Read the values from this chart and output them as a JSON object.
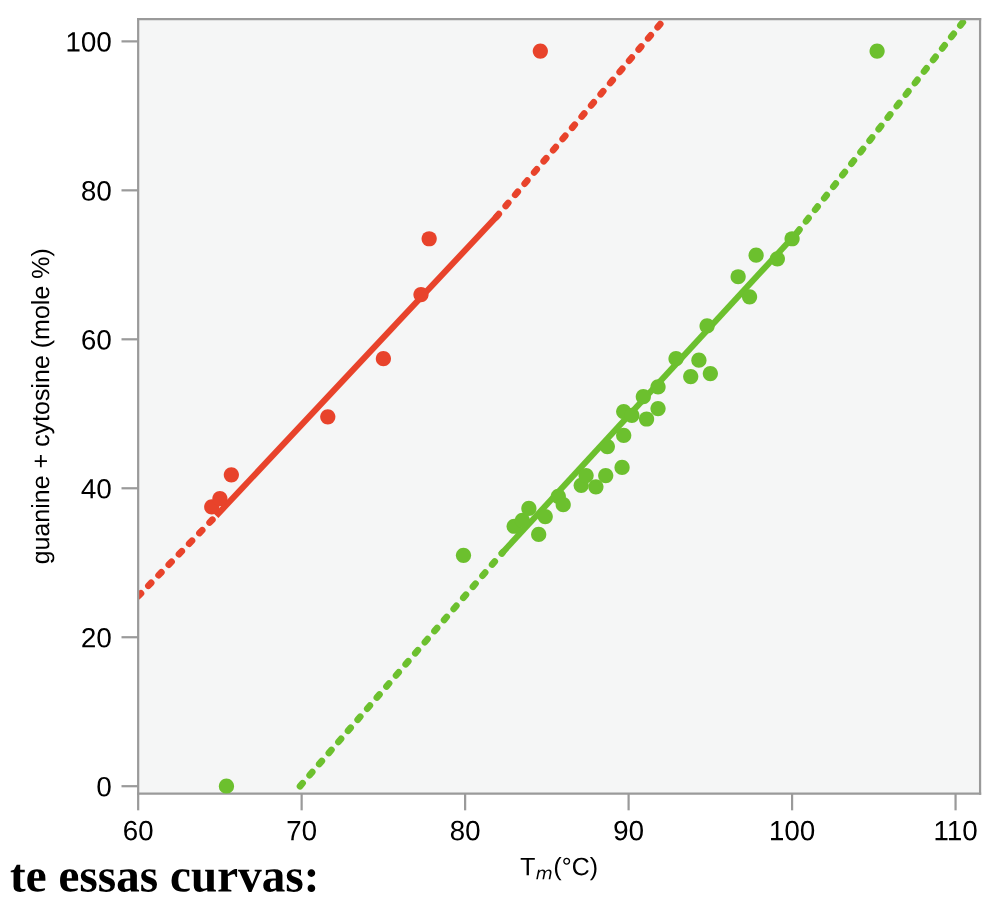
{
  "chart_data": {
    "type": "scatter",
    "xlabel": "T$_{m}$(°C)",
    "ylabel": "guanine + cytosine (mole %)",
    "xlim": [
      60,
      111.5
    ],
    "ylim": [
      -1,
      103
    ],
    "xticks": [
      60,
      70,
      80,
      90,
      100,
      110
    ],
    "yticks": [
      0,
      20,
      40,
      60,
      80,
      100
    ],
    "grid": false,
    "legend": false,
    "annotations": [
      "te essas curvas:"
    ],
    "series": [
      {
        "marker": "circle",
        "color": "#e8432b",
        "x": [
          64.5,
          65.0,
          65.7,
          71.6,
          75.0,
          77.3,
          77.8,
          84.6
        ],
        "values": [
          37.5,
          38.6,
          41.8,
          49.6,
          57.4,
          66.0,
          73.5,
          98.7
        ]
      },
      {
        "marker": "circle",
        "color": "#6cc02e",
        "x": [
          65.4,
          79.9,
          83.0,
          83.5,
          83.9,
          84.5,
          84.9,
          85.7,
          86.0,
          87.1,
          87.4,
          88.0,
          88.6,
          88.7,
          89.6,
          89.7,
          89.7,
          90.2,
          90.9,
          91.1,
          91.8,
          91.8,
          92.9,
          93.8,
          94.3,
          94.8,
          95.0,
          96.7,
          97.4,
          97.8,
          99.1,
          100.0,
          105.2
        ],
        "values": [
          0,
          31.0,
          34.9,
          35.7,
          37.3,
          33.8,
          36.2,
          38.9,
          37.8,
          40.4,
          41.7,
          40.2,
          41.7,
          45.6,
          42.8,
          47.1,
          50.3,
          49.8,
          52.3,
          49.3,
          50.7,
          53.6,
          57.4,
          55.0,
          57.2,
          61.8,
          55.4,
          68.4,
          65.7,
          71.3,
          70.8,
          73.5,
          98.7
        ]
      },
      {
        "type": "line",
        "line_style": "solid",
        "marker": "none",
        "color": "#e8432b",
        "x": [
          64.9,
          81.9
        ],
        "values": [
          36.6,
          76.4
        ]
      },
      {
        "type": "line",
        "line_style": "dotted",
        "marker": "none",
        "color": "#e8432b",
        "x": [
          60,
          64.9,
          73,
          81.9,
          92.2
        ],
        "values": [
          25.5,
          36.6,
          null,
          76.4,
          103
        ]
      },
      {
        "type": "line",
        "line_style": "solid",
        "marker": "none",
        "color": "#6cc02e",
        "x": [
          82.3,
          100.3
        ],
        "values": [
          31.4,
          74.3
        ]
      },
      {
        "type": "line",
        "line_style": "dotted",
        "marker": "none",
        "color": "#6cc02e",
        "x": [
          69.9,
          82.3,
          91,
          100.3,
          110.6
        ],
        "values": [
          0,
          31.4,
          null,
          74.3,
          103
        ]
      }
    ]
  }
}
